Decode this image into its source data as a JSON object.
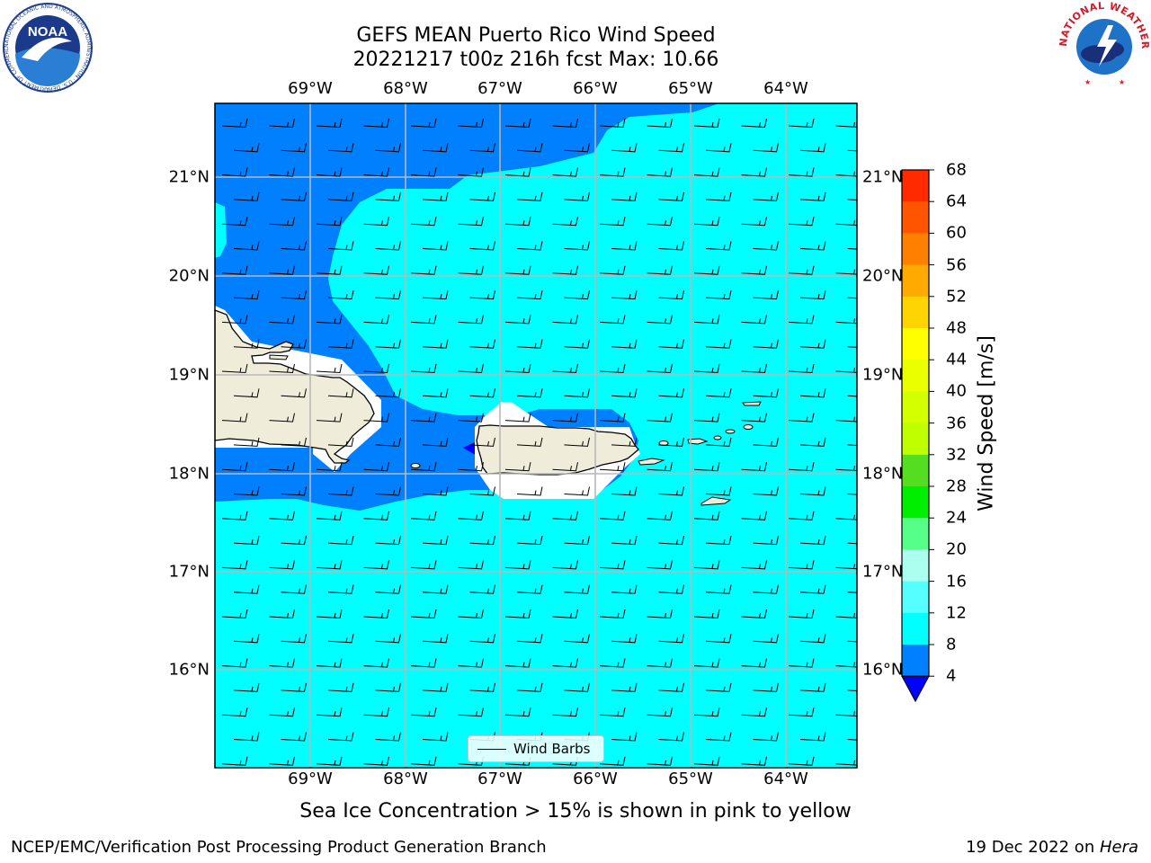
{
  "title_line1": "GEFS MEAN Puerto Rico Wind Speed",
  "title_line2": "20221217 t00z 216h fcst   Max: 10.66",
  "lon_labels": [
    "69°W",
    "68°W",
    "67°W",
    "66°W",
    "65°W",
    "64°W"
  ],
  "lat_labels": [
    "21°N",
    "20°N",
    "19°N",
    "18°N",
    "17°N",
    "16°N"
  ],
  "colorbar": {
    "title": "Wind Speed [m/s]",
    "ticks": [
      "68",
      "64",
      "60",
      "56",
      "52",
      "48",
      "44",
      "40",
      "36",
      "32",
      "28",
      "24",
      "20",
      "16",
      "12",
      "8",
      "4"
    ],
    "colors": [
      "#ff0000",
      "#ff2a00",
      "#ff5500",
      "#ff8000",
      "#ffaa00",
      "#ffd400",
      "#ffff00",
      "#eaff00",
      "#d4ff00",
      "#bfff00",
      "#55dd22",
      "#00ee00",
      "#55ff88",
      "#aaffee",
      "#55ffff",
      "#00ffff",
      "#0080ff",
      "#0000ff"
    ]
  },
  "legend": {
    "label": "Wind Barbs"
  },
  "footer_note": "Sea Ice Concentration > 15% is shown in pink to yellow",
  "footer_left": "NCEP/EMC/Verification Post Processing Product Generation Branch",
  "footer_right_prefix": "19 Dec 2022 on ",
  "footer_right_host": "Hera",
  "logos": {
    "noaa_text": "NOAA",
    "noaa_ring": "NATIONAL OCEANIC AND ATMOSPHERIC ADMINISTRATION · U.S. DEPARTMENT OF COMMERCE",
    "nws_ring": "NATIONAL WEATHER SERVICE"
  }
}
